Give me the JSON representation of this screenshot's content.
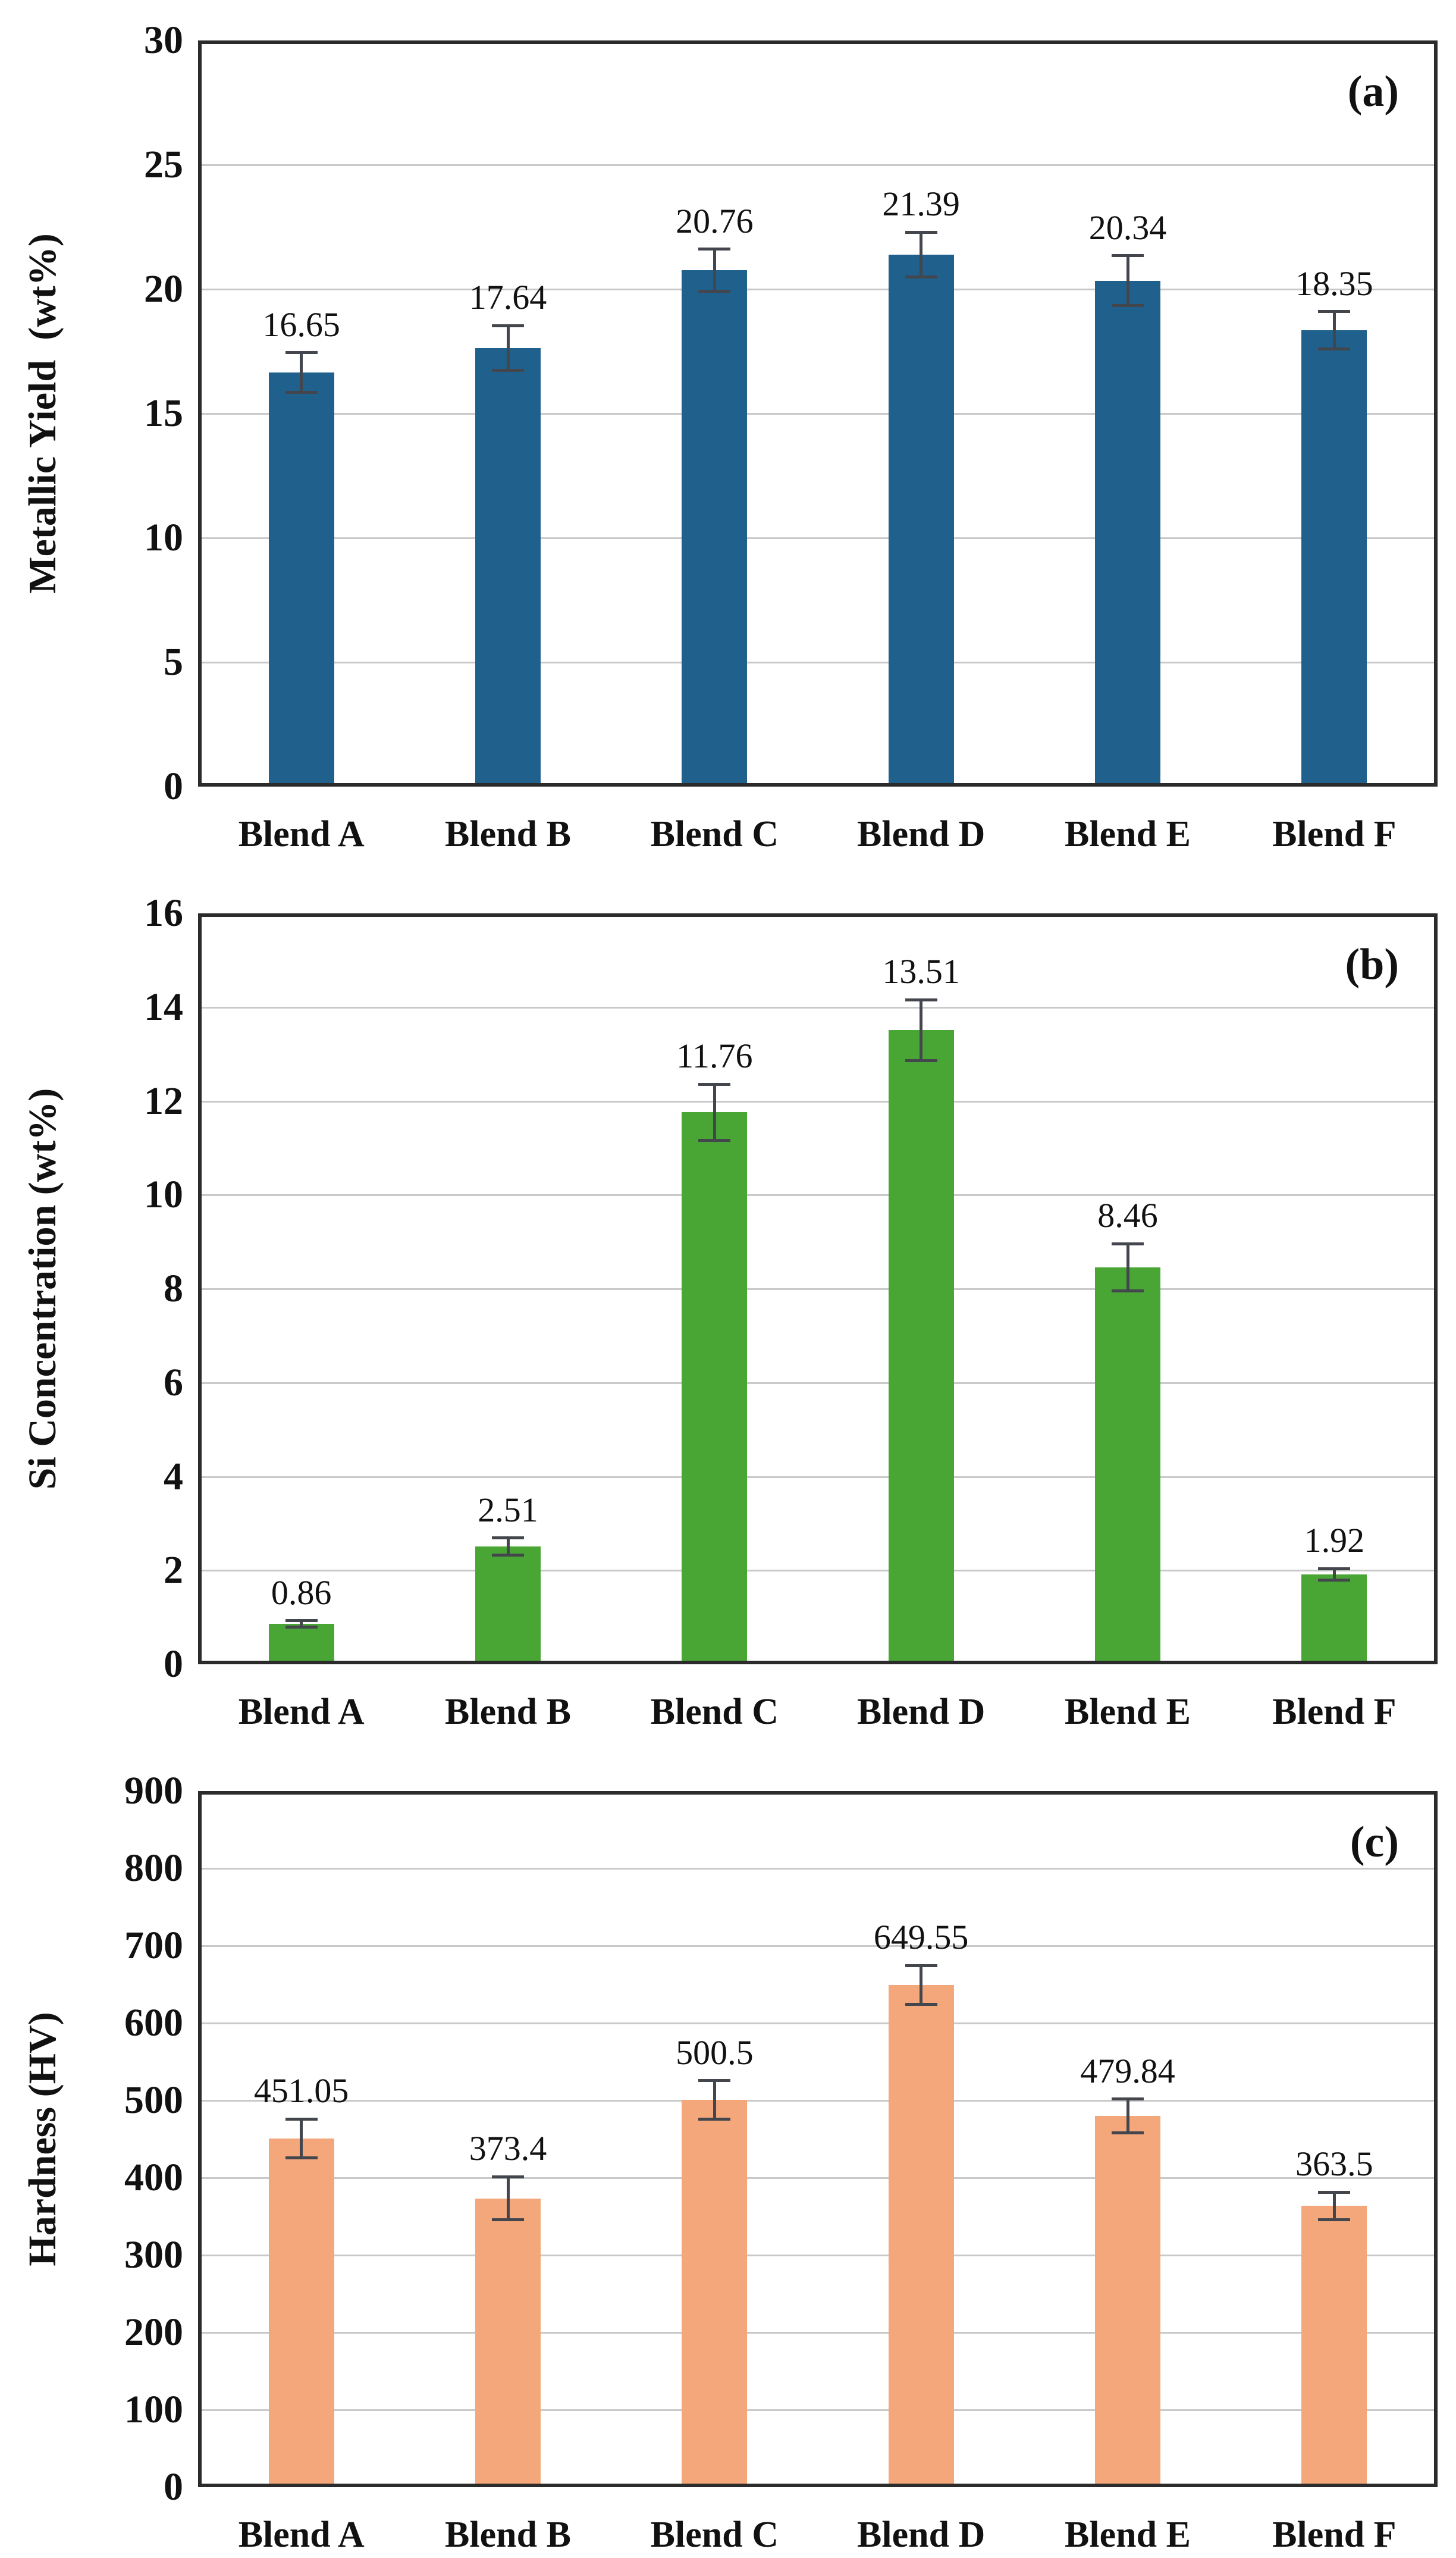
{
  "figure": {
    "background": "#FFFFFF",
    "text_color": "#111111",
    "grid_color": "#C9C9C9",
    "border_color": "#2B2B2B",
    "error_bar_color": "#44464E"
  },
  "chart_data": [
    {
      "type": "bar",
      "panel_label": "(a)",
      "ylabel": "Metallic Yield  (wt%)",
      "xlabel": "",
      "categories": [
        "Blend A",
        "Blend B",
        "Blend C",
        "Blend D",
        "Blend E",
        "Blend F"
      ],
      "values": [
        16.65,
        17.64,
        20.76,
        21.39,
        20.34,
        18.35
      ],
      "value_labels": [
        "16.65",
        "17.64",
        "20.76",
        "21.39",
        "20.34",
        "18.35"
      ],
      "errors": [
        0.8,
        0.9,
        0.85,
        0.9,
        1.0,
        0.75
      ],
      "ylim": [
        0,
        30
      ],
      "ytick_step": 5,
      "ytick_labels": [
        "0",
        "5",
        "10",
        "15",
        "20",
        "25",
        "30"
      ],
      "bar_color": "#1F618C",
      "grid": true,
      "legend": false
    },
    {
      "type": "bar",
      "panel_label": "(b)",
      "ylabel": "Si Concentration (wt%)",
      "xlabel": "",
      "categories": [
        "Blend A",
        "Blend B",
        "Blend C",
        "Blend D",
        "Blend E",
        "Blend F"
      ],
      "values": [
        0.86,
        2.51,
        11.76,
        13.51,
        8.46,
        1.92
      ],
      "value_labels": [
        "0.86",
        "2.51",
        "11.76",
        "13.51",
        "8.46",
        "1.92"
      ],
      "errors": [
        0.07,
        0.18,
        0.6,
        0.65,
        0.5,
        0.12
      ],
      "ylim": [
        0,
        16
      ],
      "ytick_step": 2,
      "ytick_labels": [
        "0",
        "2",
        "4",
        "6",
        "8",
        "10",
        "12",
        "14",
        "16"
      ],
      "bar_color": "#4AA634",
      "grid": true,
      "legend": false
    },
    {
      "type": "bar",
      "panel_label": "(c)",
      "ylabel": "Hardness (HV)",
      "xlabel": "",
      "categories": [
        "Blend A",
        "Blend B",
        "Blend C",
        "Blend D",
        "Blend E",
        "Blend F"
      ],
      "values": [
        451.05,
        373.4,
        500.5,
        649.55,
        479.84,
        363.5
      ],
      "value_labels": [
        "451.05",
        "373.4",
        "500.5",
        "649.55",
        "479.84",
        "363.5"
      ],
      "errors": [
        25,
        28,
        25,
        25,
        22,
        18
      ],
      "ylim": [
        0,
        900
      ],
      "ytick_step": 100,
      "ytick_labels": [
        "0",
        "100",
        "200",
        "300",
        "400",
        "500",
        "600",
        "700",
        "800",
        "900"
      ],
      "bar_color": "#F3A77B",
      "grid": true,
      "legend": false
    }
  ]
}
